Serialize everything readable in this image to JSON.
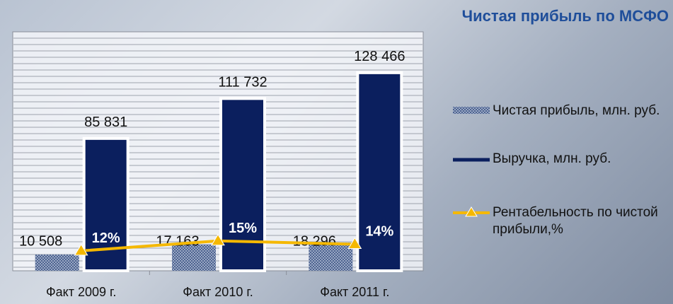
{
  "chart_data": {
    "type": "bar",
    "title": "Чистая прибыль по МСФО",
    "categories": [
      "Факт 2009 г.",
      "Факт 2010 г.",
      "Факт 2011 г."
    ],
    "ylim": [
      0,
      155000
    ],
    "y2lim": [
      6,
      78
    ],
    "series": [
      {
        "name": "Чистая прибыль, млн. руб.",
        "type": "bar",
        "color": "#5a6f9a",
        "values": [
          10508,
          17163,
          18296
        ],
        "value_labels": [
          "10 508",
          "17 163",
          "18 296"
        ]
      },
      {
        "name": "Выручка, млн. руб.",
        "type": "bar",
        "color": "#0b1f5e",
        "values": [
          85831,
          111732,
          128466
        ],
        "value_labels": [
          "85 831",
          "111 732",
          "128 466"
        ]
      },
      {
        "name": "Рентабельность по чистой прибыли,%",
        "type": "line",
        "axis": "y2",
        "color": "#f5b800",
        "values": [
          12,
          15,
          14
        ],
        "value_labels": [
          "12%",
          "15%",
          "14%"
        ]
      }
    ]
  }
}
